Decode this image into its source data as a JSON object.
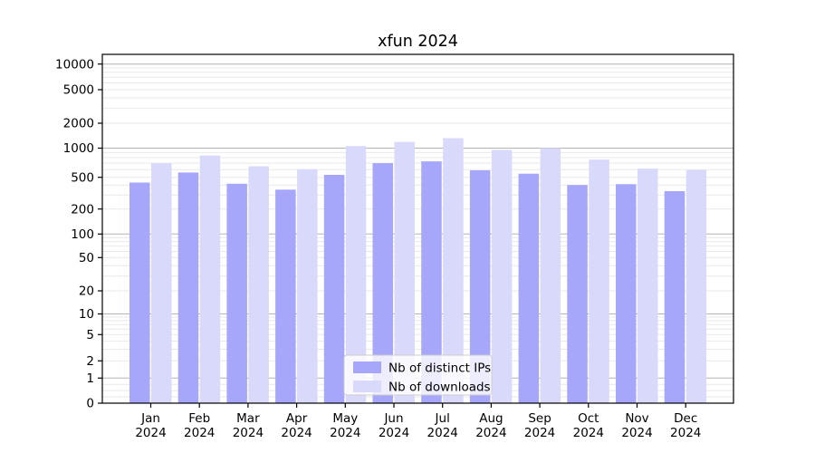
{
  "chart_data": {
    "type": "bar",
    "title": "xfun 2024",
    "categories": [
      "Jan",
      "Feb",
      "Mar",
      "Apr",
      "May",
      "Jun",
      "Jul",
      "Aug",
      "Sep",
      "Oct",
      "Nov",
      "Dec"
    ],
    "x_year_label": "2024",
    "series": [
      {
        "name": "Nb of distinct IPs",
        "color": "#a6a6fa",
        "values": [
          430,
          560,
          415,
          350,
          530,
          700,
          730,
          590,
          545,
          400,
          410,
          335
        ]
      },
      {
        "name": "Nb of downloads",
        "color": "#d9d9fb",
        "values": [
          700,
          840,
          650,
          605,
          1060,
          1190,
          1320,
          960,
          1000,
          760,
          615,
          595
        ]
      }
    ],
    "yscale": "symlog",
    "yticks": [
      0,
      1,
      2,
      5,
      10,
      20,
      50,
      100,
      200,
      500,
      1000,
      2000,
      5000,
      10000
    ],
    "ylim": [
      0,
      10000
    ],
    "grid": true,
    "legend": {
      "position": "lower-center",
      "labels": [
        "Nb of distinct IPs",
        "Nb of downloads"
      ]
    },
    "colors": {
      "axis": "#000000",
      "major_grid": "#b4b4b4",
      "minor_grid": "#e9e9e9",
      "legend_border": "#cccccc",
      "legend_background": "#ffffff"
    }
  }
}
